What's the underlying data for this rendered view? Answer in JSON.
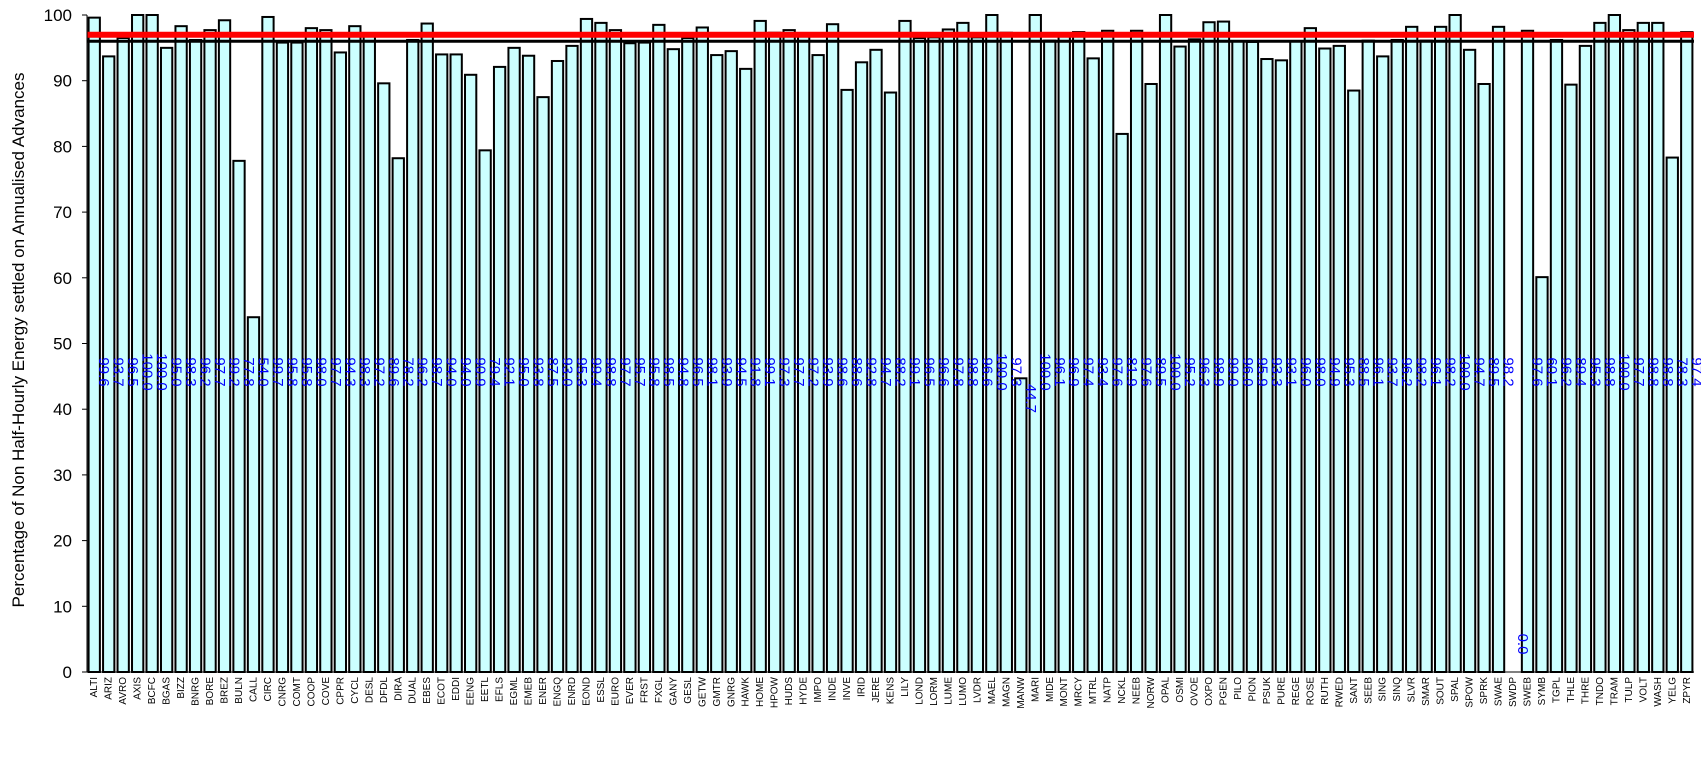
{
  "chart_data": {
    "type": "bar",
    "title": "",
    "xlabel": "",
    "ylabel": "Percentage of Non Half-Hourly Energy settled on Annualised Advances",
    "ylim": [
      0,
      100
    ],
    "yticks": [
      0,
      10,
      20,
      30,
      40,
      50,
      60,
      70,
      80,
      90,
      100
    ],
    "grid": false,
    "bar_fill": "#ccffff",
    "bar_stroke": "#000000",
    "label_color": "#0000ff",
    "reference_lines": [
      {
        "value": 97,
        "color": "#ff0000"
      },
      {
        "value": 96,
        "color": "#000000"
      }
    ],
    "categories": [
      "ALTI",
      "ARIZ",
      "AVRO",
      "AXIS",
      "BCFC",
      "BGAS",
      "BIZZ",
      "BNRG",
      "BORE",
      "BREZ",
      "BULN",
      "CALL",
      "CIRC",
      "CNRG",
      "COMT",
      "COOP",
      "COVE",
      "CPPR",
      "CYCL",
      "DESL",
      "DFDL",
      "DIRA",
      "DUAL",
      "EBES",
      "ECOT",
      "EDDI",
      "EENG",
      "EETL",
      "EFLS",
      "EGML",
      "EMEB",
      "ENER",
      "ENGQ",
      "ENRD",
      "EOND",
      "ESSL",
      "EURO",
      "EVER",
      "FRST",
      "FXGL",
      "GANY",
      "GESL",
      "GETW",
      "GMTR",
      "GNRG",
      "HAWK",
      "HOME",
      "HPOW",
      "HUDS",
      "HYDE",
      "IMPO",
      "INDE",
      "INVE",
      "IRID",
      "JERE",
      "KENS",
      "LILY",
      "LOND",
      "LORM",
      "LUME",
      "LUMO",
      "LVDR",
      "MAEL",
      "MAGN",
      "MANW",
      "MARI",
      "MIDE",
      "MONT",
      "MRCY",
      "MTRL",
      "NATP",
      "NCKL",
      "NEEB",
      "NORW",
      "OPAL",
      "OSMI",
      "OVOE",
      "OXPO",
      "PGEN",
      "PILO",
      "PION",
      "PSUK",
      "PURE",
      "REGE",
      "ROSE",
      "RUTH",
      "RWED",
      "SANT",
      "SEEB",
      "SING",
      "SINQ",
      "SLVR",
      "SMAR",
      "SOUT",
      "SPAL",
      "SPOW",
      "SPRK",
      "SWAE",
      "SWDP",
      "SWEB",
      "SYMB",
      "TGPL",
      "THLE",
      "THRE",
      "TNDO",
      "TRAM",
      "TULP",
      "VOLT",
      "WASH",
      "YELG",
      "ZPYR"
    ],
    "values": [
      99.6,
      93.7,
      96.5,
      100.0,
      100.0,
      95.0,
      98.3,
      96.2,
      97.7,
      99.2,
      77.8,
      54.0,
      99.7,
      95.8,
      95.8,
      98.0,
      97.7,
      94.3,
      98.3,
      97.2,
      89.6,
      78.2,
      96.2,
      98.7,
      94.0,
      94.0,
      90.9,
      79.4,
      92.1,
      95.0,
      93.8,
      87.5,
      93.0,
      95.3,
      99.4,
      98.8,
      97.7,
      95.7,
      95.8,
      98.5,
      94.8,
      96.5,
      98.1,
      93.9,
      94.5,
      91.8,
      99.1,
      97.3,
      97.7,
      97.2,
      93.9,
      98.6,
      88.6,
      92.8,
      94.7,
      88.2,
      99.1,
      96.5,
      96.6,
      97.8,
      98.8,
      96.6,
      100.0,
      97.3,
      44.7,
      100.0,
      96.1,
      96.9,
      97.4,
      93.4,
      97.6,
      81.9,
      97.6,
      89.5,
      100.0,
      95.2,
      96.3,
      98.9,
      99.0,
      96.0,
      95.9,
      93.3,
      93.1,
      96.0,
      98.0,
      94.9,
      95.3,
      88.5,
      96.1,
      93.7,
      96.2,
      98.2,
      96.1,
      98.2,
      100.0,
      94.7,
      89.5,
      98.2,
      0.0,
      97.6,
      60.1,
      96.2,
      89.4,
      95.3,
      98.8,
      100.0,
      97.7,
      98.8,
      98.8,
      78.3,
      97.4
    ]
  }
}
